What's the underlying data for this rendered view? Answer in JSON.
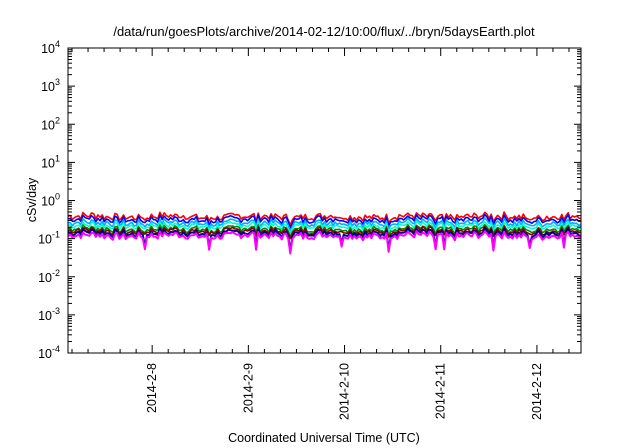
{
  "chart_data": {
    "type": "line",
    "title": "/data/run/goesPlots/archive/2014-02-12/10:00/flux/../bryn/5daysEarth.plot",
    "xlabel": "Coordinated Universal Time (UTC)",
    "ylabel": "cSv/day",
    "yscale": "log",
    "ylim": [
      0.0001,
      10000
    ],
    "xlim": [
      "2014-02-07 03:00",
      "2014-02-12 11:00"
    ],
    "grid": false,
    "legend": "none",
    "y_ticks": [
      {
        "base": "10",
        "exp": "-4"
      },
      {
        "base": "10",
        "exp": "-3"
      },
      {
        "base": "10",
        "exp": "-2"
      },
      {
        "base": "10",
        "exp": "-1"
      },
      {
        "base": "10",
        "exp": "0"
      },
      {
        "base": "10",
        "exp": "1"
      },
      {
        "base": "10",
        "exp": "2"
      },
      {
        "base": "10",
        "exp": "3"
      },
      {
        "base": "10",
        "exp": "4"
      }
    ],
    "x_ticks": [
      "2014-2-8",
      "2014-2-9",
      "2014-2-10",
      "2014-2-11",
      "2014-2-12"
    ],
    "series": [
      {
        "color": "#ff0000",
        "level": 0.38,
        "x_range": [
          "2014-02-07 03:00",
          "2014-02-12 11:00"
        ]
      },
      {
        "color": "#0000ff",
        "level": 0.32,
        "x_range": [
          "2014-02-07 03:00",
          "2014-02-12 11:00"
        ]
      },
      {
        "color": "#00aaff",
        "level": 0.26,
        "x_range": [
          "2014-02-07 03:00",
          "2014-02-12 11:00"
        ]
      },
      {
        "color": "#00ffcc",
        "level": 0.22,
        "x_range": [
          "2014-02-07 03:00",
          "2014-02-12 11:00"
        ]
      },
      {
        "color": "#008800",
        "level": 0.18,
        "x_range": [
          "2014-02-07 03:00",
          "2014-02-12 11:00"
        ]
      },
      {
        "color": "#880000",
        "level": 0.16,
        "x_range": [
          "2014-02-07 03:00",
          "2014-02-12 11:00"
        ]
      },
      {
        "color": "#000088",
        "level": 0.14,
        "x_range": [
          "2014-02-07 03:00",
          "2014-02-12 11:00"
        ]
      },
      {
        "color": "#ff00ff",
        "level": 0.12,
        "x_range": [
          "2014-02-07 03:00",
          "2014-02-12 11:00"
        ]
      }
    ]
  }
}
